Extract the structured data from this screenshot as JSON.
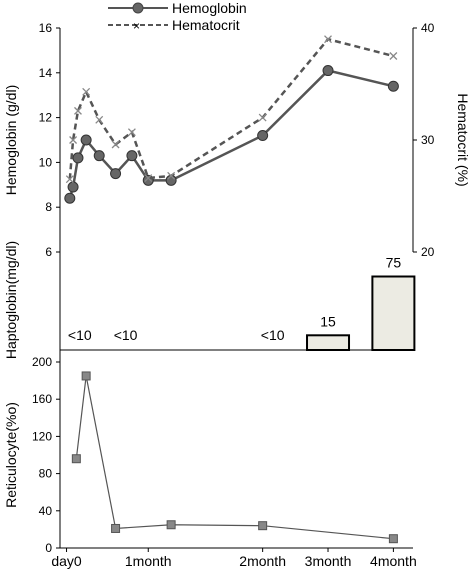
{
  "chart_data": [
    {
      "type": "line",
      "legend": {
        "entries": [
          "Hemoglobin",
          "Hematocrit"
        ],
        "placement": "top-left"
      },
      "ylabel_left": "Hemoglobin (g/dl)",
      "ylabel_right": "Hematocrit (%)",
      "ylim_left": [
        6,
        16
      ],
      "ylim_right": [
        20,
        40
      ],
      "yticks_left": [
        "6",
        "8",
        "10",
        "12",
        "14",
        "16"
      ],
      "yticks_right": [
        "20",
        "30",
        "40"
      ],
      "x": [
        0.1,
        0.2,
        0.35,
        0.6,
        1.0,
        1.5,
        2.0,
        2.5,
        3.2,
        6.0,
        8.0,
        10.0
      ],
      "series": [
        {
          "name": "Hemoglobin",
          "color": "#555555",
          "style": "solid",
          "marker": "circle",
          "axis": "left",
          "values": [
            8.4,
            8.9,
            10.2,
            11.0,
            10.3,
            9.5,
            10.3,
            9.2,
            9.2,
            11.2,
            14.1,
            13.4
          ],
          "x_index": [
            0,
            1,
            2,
            3,
            4,
            5,
            6,
            7,
            8,
            9,
            10,
            11
          ]
        },
        {
          "name": "Hematocrit",
          "color": "#555555",
          "style": "dashed",
          "marker": "x",
          "axis": "right",
          "values": [
            26.5,
            30.0,
            32.6,
            34.3,
            31.8,
            29.6,
            30.7,
            26.6,
            26.8,
            32.0,
            39.0,
            37.5
          ],
          "x_index": [
            0,
            1,
            2,
            3,
            4,
            5,
            6,
            7,
            8,
            9,
            10,
            11
          ]
        }
      ]
    },
    {
      "type": "bar",
      "ylabel": "Haptoglobin(mg/dl)",
      "labels": [
        {
          "x": 0.1,
          "text": "<10"
        },
        {
          "x": 1.5,
          "text": "<10"
        },
        {
          "x": 6.0,
          "text": "<10"
        }
      ],
      "bars": [
        {
          "x": 8.0,
          "value": 15,
          "label": "15"
        },
        {
          "x": 10.0,
          "value": 75,
          "label": "75"
        }
      ],
      "ylim": [
        0,
        100
      ]
    },
    {
      "type": "line",
      "ylabel": "Reticulocyte(%o)",
      "ylim": [
        0,
        200
      ],
      "yticks": [
        "0",
        "40",
        "80",
        "120",
        "160",
        "200"
      ],
      "x": [
        0.3,
        0.6,
        1.5,
        3.2,
        6.0,
        10.0
      ],
      "values": [
        96,
        185,
        21,
        25,
        24,
        10
      ],
      "color": "#555555",
      "marker": "square"
    }
  ],
  "x_axis": {
    "ticks": [
      {
        "x": 0.0,
        "label": "day0"
      },
      {
        "x": 2.5,
        "label": "1month"
      },
      {
        "x": 6.0,
        "label": "2month"
      },
      {
        "x": 8.0,
        "label": "3month"
      },
      {
        "x": 10.0,
        "label": "4month"
      }
    ],
    "xlim": [
      -0.2,
      10.6
    ]
  }
}
